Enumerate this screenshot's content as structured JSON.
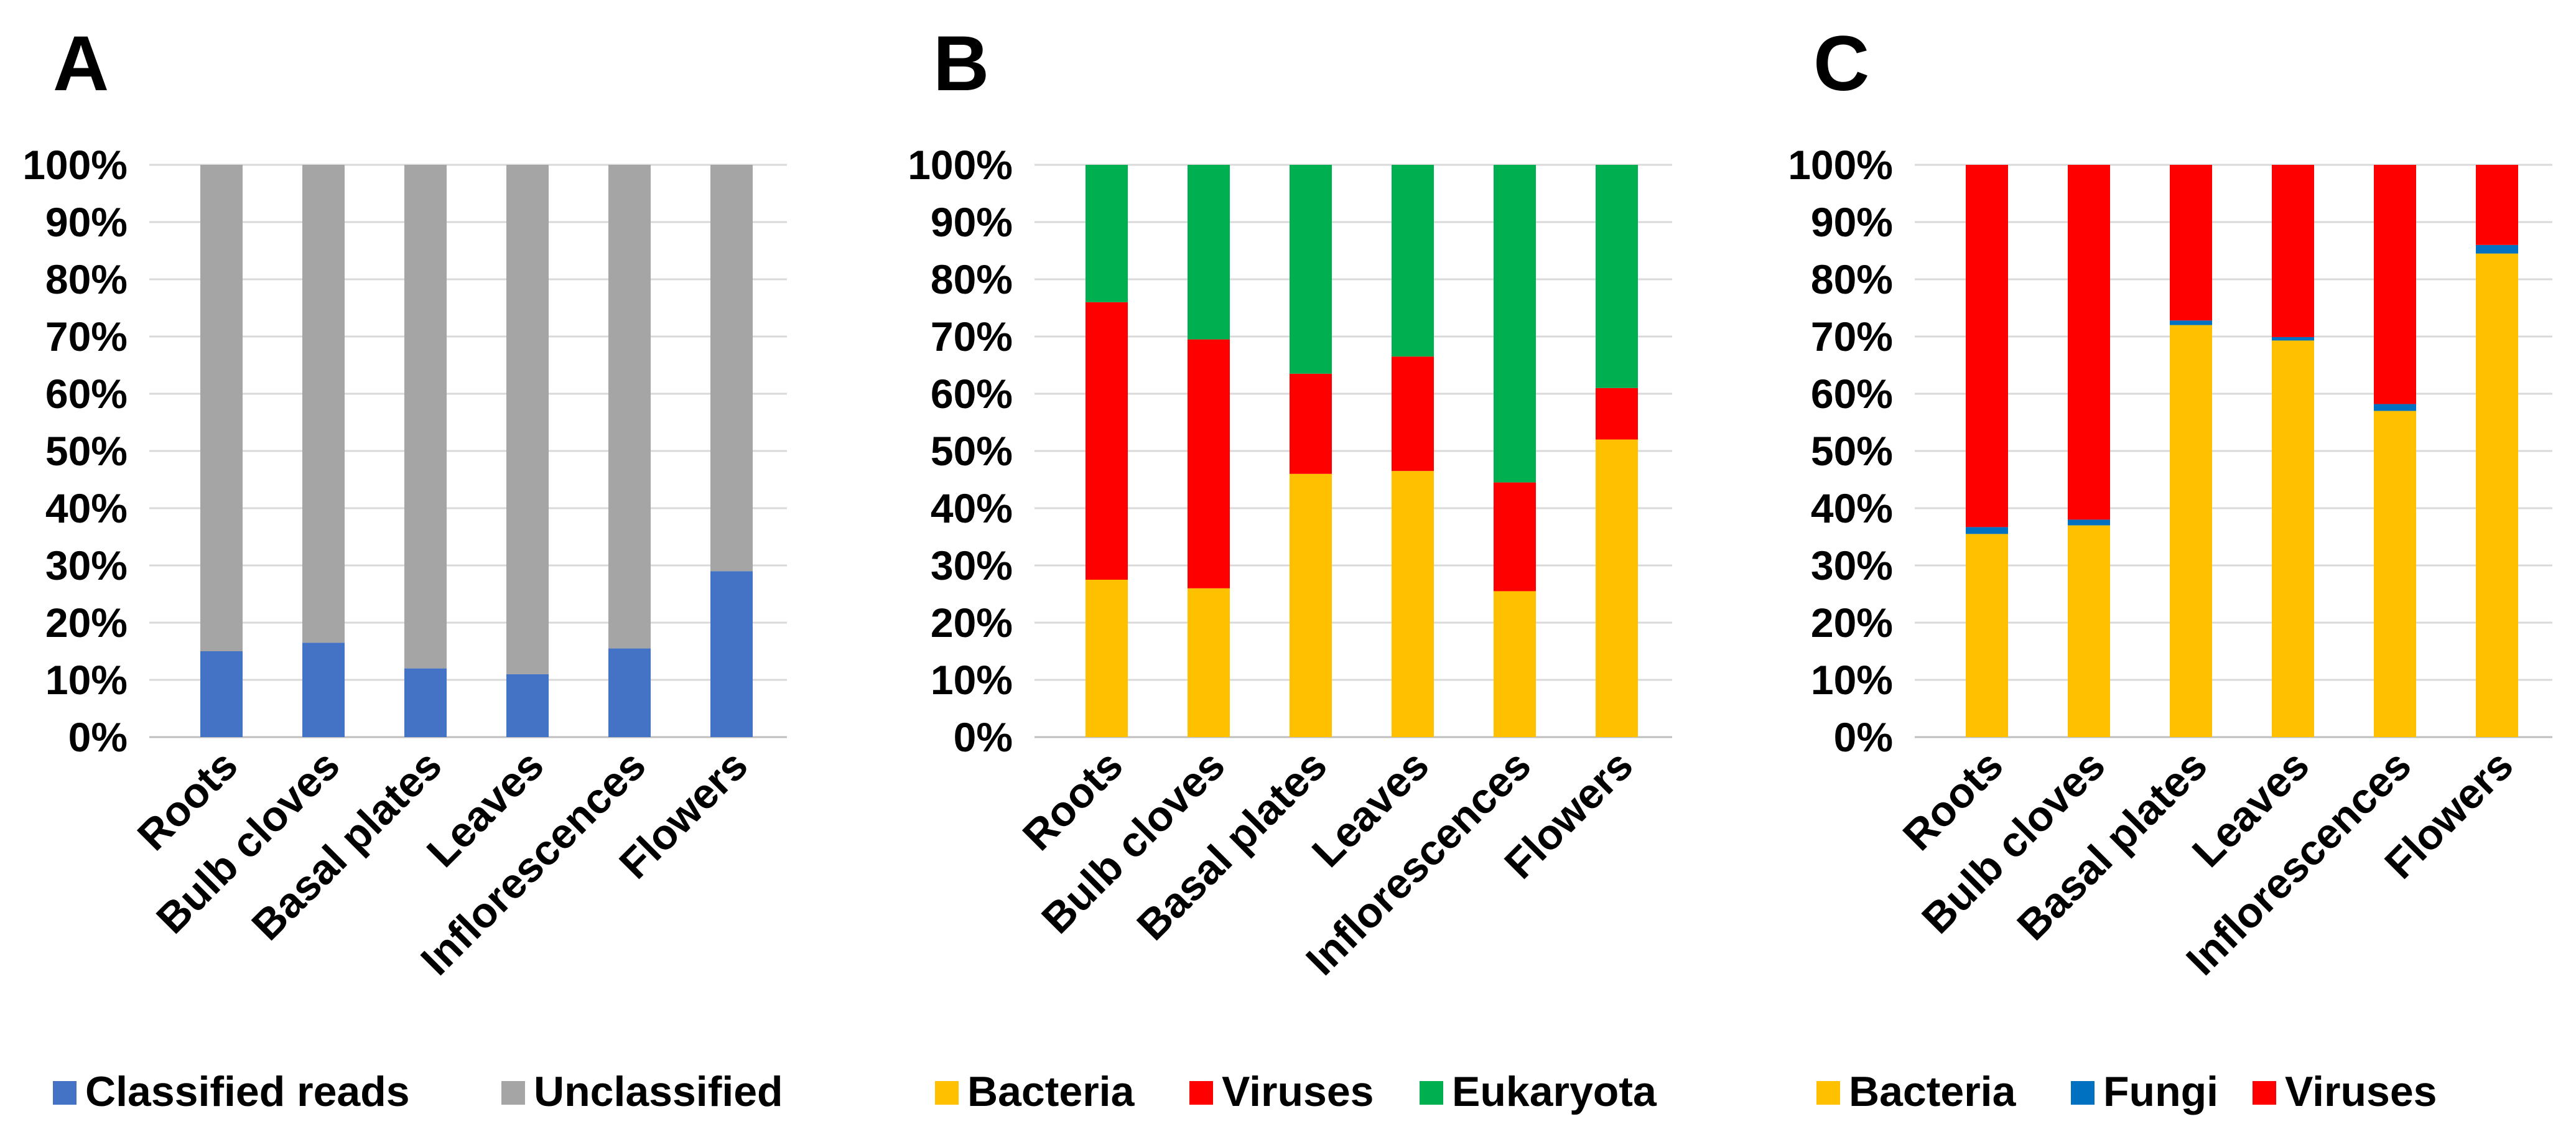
{
  "chart_data": [
    {
      "panel": "A",
      "type": "bar",
      "stacked": true,
      "normalized": true,
      "categories": [
        "Roots",
        "Bulb cloves",
        "Basal plates",
        "Leaves",
        "Inflorescences",
        "Flowers"
      ],
      "series": [
        {
          "name": "Classified reads",
          "color": "#4472c4",
          "values": [
            15,
            16.5,
            12,
            11,
            15.5,
            29
          ]
        },
        {
          "name": "Unclassified",
          "color": "#a5a5a5",
          "values": [
            85,
            83.5,
            88,
            89,
            84.5,
            71
          ]
        }
      ],
      "ylim": [
        0,
        100
      ],
      "yticks": [
        "0%",
        "10%",
        "20%",
        "30%",
        "40%",
        "50%",
        "60%",
        "70%",
        "80%",
        "90%",
        "100%"
      ],
      "legend": "bottom",
      "grid": true
    },
    {
      "panel": "B",
      "type": "bar",
      "stacked": true,
      "normalized": true,
      "categories": [
        "Roots",
        "Bulb cloves",
        "Basal plates",
        "Leaves",
        "Inflorescences",
        "Flowers"
      ],
      "series": [
        {
          "name": "Bacteria",
          "color": "#ffc000",
          "values": [
            27.5,
            26,
            46,
            46.5,
            25.5,
            52
          ]
        },
        {
          "name": "Viruses",
          "color": "#ff0000",
          "values": [
            48.5,
            43.5,
            17.5,
            20,
            19,
            9
          ]
        },
        {
          "name": "Eukaryota",
          "color": "#00b050",
          "values": [
            24,
            30.5,
            36.5,
            33.5,
            55.5,
            39
          ]
        }
      ],
      "ylim": [
        0,
        100
      ],
      "yticks": [
        "0%",
        "10%",
        "20%",
        "30%",
        "40%",
        "50%",
        "60%",
        "70%",
        "80%",
        "90%",
        "100%"
      ],
      "legend": "bottom",
      "grid": true
    },
    {
      "panel": "C",
      "type": "bar",
      "stacked": true,
      "normalized": true,
      "categories": [
        "Roots",
        "Bulb cloves",
        "Basal plates",
        "Leaves",
        "Inflorescences",
        "Flowers"
      ],
      "series": [
        {
          "name": "Bacteria",
          "color": "#ffc000",
          "values": [
            35.5,
            37,
            72,
            69.3,
            57,
            84.5
          ]
        },
        {
          "name": "Fungi",
          "color": "#0070c0",
          "values": [
            1.2,
            1,
            0.8,
            0.6,
            1.2,
            1.5
          ]
        },
        {
          "name": "Viruses",
          "color": "#ff0000",
          "values": [
            63.3,
            62,
            27.2,
            30.1,
            41.8,
            14
          ]
        }
      ],
      "ylim": [
        0,
        100
      ],
      "yticks": [
        "0%",
        "10%",
        "20%",
        "30%",
        "40%",
        "50%",
        "60%",
        "70%",
        "80%",
        "90%",
        "100%"
      ],
      "legend": "bottom",
      "grid": true
    }
  ]
}
